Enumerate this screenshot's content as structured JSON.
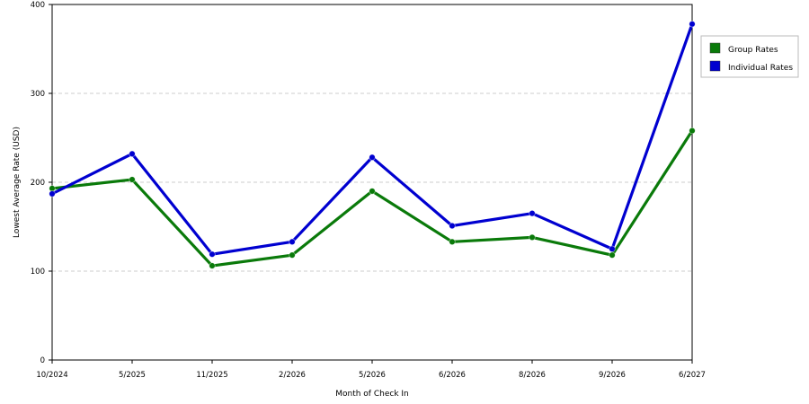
{
  "chart_data": {
    "type": "line",
    "xlabel": "Month of Check In",
    "ylabel": "Lowest Average Rate (USD)",
    "categories": [
      "10/2024",
      "5/2025",
      "11/2025",
      "2/2026",
      "5/2026",
      "6/2026",
      "8/2026",
      "9/2026",
      "6/2027"
    ],
    "ylim": [
      0,
      400
    ],
    "yticks": [
      0,
      100,
      200,
      300,
      400
    ],
    "grid": "horizontal dashed",
    "legend_position": "top-right",
    "series": [
      {
        "name": "Group Rates",
        "color": "#0a7a0a",
        "values": [
          193,
          203,
          106,
          118,
          190,
          133,
          138,
          118,
          258
        ]
      },
      {
        "name": "Individual Rates",
        "color": "#0000d0",
        "values": [
          187,
          232,
          119,
          133,
          228,
          151,
          165,
          125,
          378
        ]
      }
    ]
  }
}
